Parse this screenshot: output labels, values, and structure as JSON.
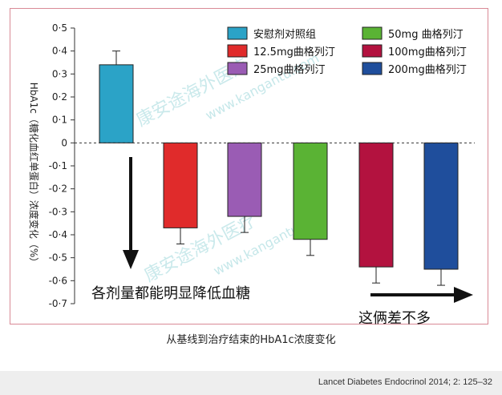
{
  "chart_data": {
    "type": "bar",
    "categories": [
      "安慰剂对照组",
      "12.5mg曲格列汀",
      "25mg曲格列汀",
      "50mg 曲格列汀",
      "100mg曲格列汀",
      "200mg曲格列汀"
    ],
    "values": [
      0.34,
      -0.37,
      -0.32,
      -0.42,
      -0.54,
      -0.55
    ],
    "error_upper": [
      0.4,
      -0.37,
      -0.32,
      -0.42,
      -0.54,
      -0.55
    ],
    "error_lower": [
      0.34,
      -0.44,
      -0.39,
      -0.49,
      -0.61,
      -0.62
    ],
    "colors": [
      "#2ba3c7",
      "#e02b2b",
      "#9a5cb4",
      "#5ab334",
      "#b3123f",
      "#1f4e9c"
    ],
    "ylabel": "HbA1c（糖化血红单蛋白）浓度变化（%）",
    "xlabel": "从基线到治疗结束的HbA1c浓度变化",
    "ylim": [
      -0.7,
      0.5
    ],
    "yticks": [
      "0·5",
      "0·4",
      "0·3",
      "0·2",
      "0·1",
      "0",
      "-0·1",
      "-0·2",
      "-0·3",
      "-0·4",
      "-0·5",
      "-0·6",
      "-0·7"
    ],
    "ytick_values": [
      0.5,
      0.4,
      0.3,
      0.2,
      0.1,
      0,
      -0.1,
      -0.2,
      -0.3,
      -0.4,
      -0.5,
      -0.6,
      -0.7
    ],
    "legend": {
      "placement": "top-right",
      "entries": [
        "安慰剂对照组",
        "12.5mg曲格列汀",
        "25mg曲格列汀",
        "50mg 曲格列汀",
        "100mg曲格列汀",
        "200mg曲格列汀"
      ]
    },
    "annotations": [
      "各剂量都能明显降低血糖",
      "这俩差不多"
    ],
    "zero_line": "dashed"
  },
  "watermark": {
    "text_1": "康安途海外医疗",
    "url_1": "www.kangantu.com",
    "text_2": "康安途海外医疗",
    "url_2": "www.kangantu.com"
  },
  "caption": "从基线到治疗结束的HbA1c浓度变化",
  "citation": "Lancet Diabetes Endocrinol 2014; 2: 125–32"
}
